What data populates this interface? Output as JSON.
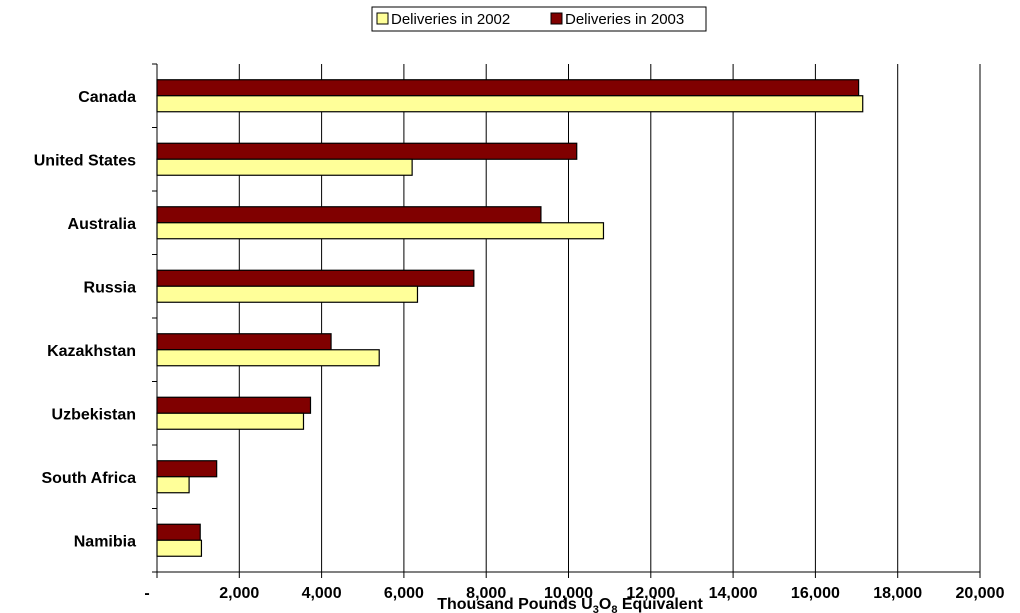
{
  "chart_data": {
    "type": "bar",
    "orientation": "horizontal",
    "categories": [
      "Canada",
      "United States",
      "Australia",
      "Russia",
      "Kazakhstan",
      "Uzbekistan",
      "South Africa",
      "Namibia"
    ],
    "series": [
      {
        "name": "Deliveries in 2002",
        "color": "#ffff99",
        "values": [
          17150,
          6200,
          10850,
          6330,
          5400,
          3560,
          780,
          1080
        ]
      },
      {
        "name": "Deliveries in 2003",
        "color": "#800000",
        "values": [
          17050,
          10200,
          9330,
          7700,
          4230,
          3730,
          1450,
          1050
        ]
      }
    ],
    "x_axis": {
      "label_main": "Thousand Pounds U",
      "label_sub1": "3",
      "label_mid": "O",
      "label_sub2": "8",
      "label_end": " Equivalent",
      "range": [
        0,
        20000
      ],
      "ticks": [
        {
          "value": 0,
          "label": "-"
        },
        {
          "value": 2000,
          "label": "2,000"
        },
        {
          "value": 4000,
          "label": "4,000"
        },
        {
          "value": 6000,
          "label": "6,000"
        },
        {
          "value": 8000,
          "label": "8,000"
        },
        {
          "value": 10000,
          "label": "10,000"
        },
        {
          "value": 12000,
          "label": "12,000"
        },
        {
          "value": 14000,
          "label": "14,000"
        },
        {
          "value": 16000,
          "label": "16,000"
        },
        {
          "value": 18000,
          "label": "18,000"
        },
        {
          "value": 20000,
          "label": "20,000"
        }
      ]
    },
    "grid": "vertical",
    "legend_position": "top-center"
  }
}
